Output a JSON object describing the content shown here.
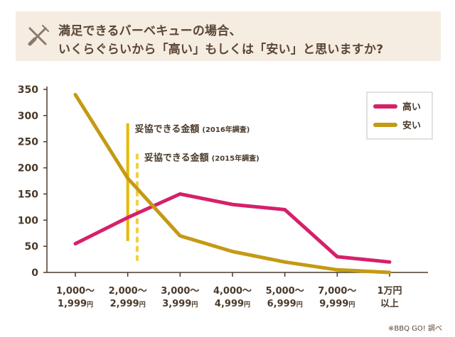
{
  "header": {
    "title_line1": "満足できるバーベキューの場合、",
    "title_line2": "いくらぐらいから「高い」もしくは「安い」と思いますか?",
    "icon": "fork-knife-icon",
    "background": "#f5ece2"
  },
  "chart_data": {
    "type": "line",
    "categories": [
      {
        "line1": "1,000～",
        "line2": "1,999",
        "yen": "円"
      },
      {
        "line1": "2,000～",
        "line2": "2,999",
        "yen": "円"
      },
      {
        "line1": "3,000～",
        "line2": "3,999",
        "yen": "円"
      },
      {
        "line1": "4,000～",
        "line2": "4,999",
        "yen": "円"
      },
      {
        "line1": "5,000～",
        "line2": "6,999",
        "yen": "円"
      },
      {
        "line1": "7,000～",
        "line2": "9,999",
        "yen": "円"
      },
      {
        "line1": "1万円",
        "line2": "以上",
        "yen": ""
      }
    ],
    "series": [
      {
        "name": "高い",
        "color": "#d6206a",
        "values": [
          55,
          105,
          150,
          130,
          120,
          30,
          20
        ]
      },
      {
        "name": "安い",
        "color": "#c49a14",
        "values": [
          340,
          180,
          70,
          40,
          20,
          5,
          0
        ]
      }
    ],
    "ylim": [
      0,
      350
    ],
    "yticks": [
      0,
      50,
      100,
      150,
      200,
      250,
      300,
      350
    ],
    "grid": false,
    "legend_position": "top-right",
    "annotations": [
      {
        "label": "妥協できる金額",
        "sub": "(2016年調査)",
        "x_index": 1.0,
        "style": "solid",
        "color": "#e8b800",
        "y_from": 60,
        "y_to": 285
      },
      {
        "label": "妥協できる金額",
        "sub": "(2015年調査)",
        "x_index": 1.18,
        "style": "dashed",
        "color": "#f0d040",
        "y_from": 22,
        "y_to": 230
      }
    ]
  },
  "source": "※BBQ GO! 調べ"
}
